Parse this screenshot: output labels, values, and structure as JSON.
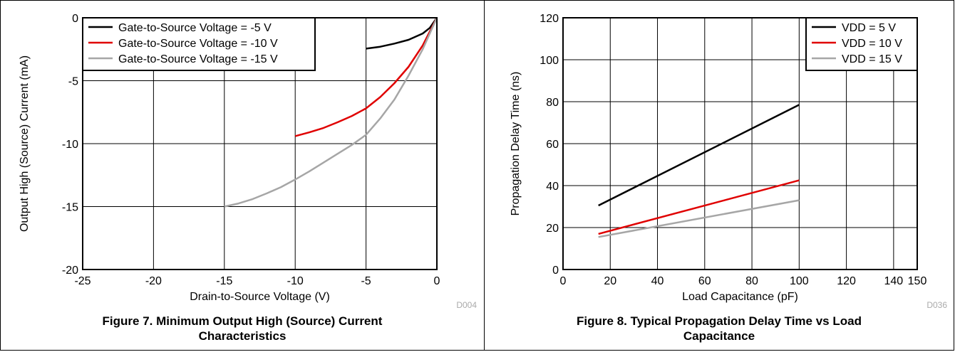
{
  "chart_data": [
    {
      "type": "line",
      "figure_caption": "Figure 7. Minimum Output High (Source) Current Characteristics",
      "figure_caption_lines": [
        "Figure 7. Minimum Output High (Source) Current",
        "Characteristics"
      ],
      "code": "D004",
      "xlabel": "Drain-to-Source Voltage (V)",
      "ylabel": "Output High (Source) Current (mA)",
      "xlim": [
        -25,
        0
      ],
      "ylim": [
        -20,
        0
      ],
      "xticks": [
        -25,
        -20,
        -15,
        -10,
        -5,
        0
      ],
      "xtick_labels": [
        "-25",
        "-20",
        "-15",
        "-10",
        "-5",
        "0"
      ],
      "yticks": [
        0,
        -5,
        -10,
        -15,
        -20
      ],
      "ytick_labels": [
        "0",
        "-5",
        "-10",
        "-15",
        "-20"
      ],
      "grid": true,
      "legend_position": "top-left",
      "series": [
        {
          "name": "Gate-to-Source Voltage = -5 V",
          "color": "#000000",
          "x": [
            -5,
            -4,
            -3,
            -2,
            -1,
            -0.5,
            0
          ],
          "y": [
            -2.45,
            -2.3,
            -2.05,
            -1.75,
            -1.25,
            -0.8,
            0
          ]
        },
        {
          "name": "Gate-to-Source Voltage = -10 V",
          "color": "#e00000",
          "x": [
            -10,
            -9,
            -8,
            -7,
            -6,
            -5,
            -4,
            -3,
            -2,
            -1,
            0
          ],
          "y": [
            -9.4,
            -9.1,
            -8.75,
            -8.3,
            -7.8,
            -7.2,
            -6.3,
            -5.2,
            -3.9,
            -2.2,
            0
          ]
        },
        {
          "name": "Gate-to-Source Voltage = -15 V",
          "color": "#a6a6a6",
          "x": [
            -15,
            -14,
            -13,
            -12,
            -11,
            -10,
            -9,
            -8,
            -7,
            -6,
            -5,
            -4,
            -3,
            -2,
            -1,
            0
          ],
          "y": [
            -15,
            -14.75,
            -14.4,
            -13.95,
            -13.45,
            -12.85,
            -12.2,
            -11.5,
            -10.8,
            -10.1,
            -9.3,
            -8.0,
            -6.5,
            -4.6,
            -2.5,
            0
          ]
        }
      ]
    },
    {
      "type": "line",
      "figure_caption": "Figure 8. Typical Propagation Delay Time vs Load Capacitance",
      "figure_caption_lines": [
        "Figure 8. Typical Propagation Delay Time vs Load",
        "Capacitance"
      ],
      "code": "D036",
      "xlabel": "Load Capacitance (pF)",
      "ylabel": "Propagation Delay Time (ns)",
      "xlim": [
        0,
        150
      ],
      "ylim": [
        0,
        120
      ],
      "xticks": [
        0,
        20,
        40,
        60,
        80,
        100,
        120,
        140,
        150
      ],
      "xtick_labels": [
        "0",
        "20",
        "40",
        "60",
        "80",
        "100",
        "120",
        "140",
        "150"
      ],
      "yticks": [
        0,
        20,
        40,
        60,
        80,
        100,
        120
      ],
      "ytick_labels": [
        "0",
        "20",
        "40",
        "60",
        "80",
        "100",
        "120"
      ],
      "grid": true,
      "legend_position": "top-right",
      "series": [
        {
          "name": "VDD = 5 V",
          "color": "#000000",
          "x": [
            15,
            100
          ],
          "y": [
            30.5,
            78.5
          ]
        },
        {
          "name": "VDD = 10 V",
          "color": "#e00000",
          "x": [
            15,
            100
          ],
          "y": [
            17,
            42.5
          ]
        },
        {
          "name": "VDD = 15 V",
          "color": "#a6a6a6",
          "x": [
            15,
            100
          ],
          "y": [
            15.5,
            33
          ]
        }
      ]
    }
  ]
}
